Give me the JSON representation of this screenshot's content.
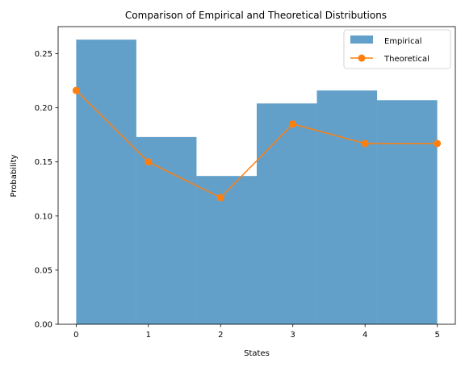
{
  "chart_data": {
    "type": "bar",
    "title": "Comparison of Empirical and Theoretical Distributions",
    "xlabel": "States",
    "ylabel": "Probability",
    "xlim": [
      -0.25,
      5.25
    ],
    "ylim": [
      0,
      0.275
    ],
    "xticks": [
      0,
      1,
      2,
      3,
      4,
      5
    ],
    "xtick_labels": [
      "0",
      "1",
      "2",
      "3",
      "4",
      "5"
    ],
    "yticks": [
      0,
      0.05,
      0.1,
      0.15,
      0.2,
      0.25
    ],
    "ytick_labels": [
      "0.00",
      "0.05",
      "0.10",
      "0.15",
      "0.20",
      "0.25"
    ],
    "grid": false,
    "legend_position": "top-right",
    "series": [
      {
        "name": "Empirical",
        "type": "histogram",
        "color": "#1f77b4",
        "opacity": 0.7,
        "bin_edges": [
          0,
          0.8333,
          1.6667,
          2.5,
          3.3333,
          4.1667,
          5
        ],
        "values": [
          0.263,
          0.173,
          0.137,
          0.204,
          0.216,
          0.207
        ]
      },
      {
        "name": "Theoretical",
        "type": "line",
        "marker": "circle",
        "color": "#ff7f0e",
        "x": [
          0,
          1,
          2,
          3,
          4,
          5
        ],
        "values": [
          0.216,
          0.15,
          0.117,
          0.185,
          0.167,
          0.167
        ]
      }
    ]
  }
}
